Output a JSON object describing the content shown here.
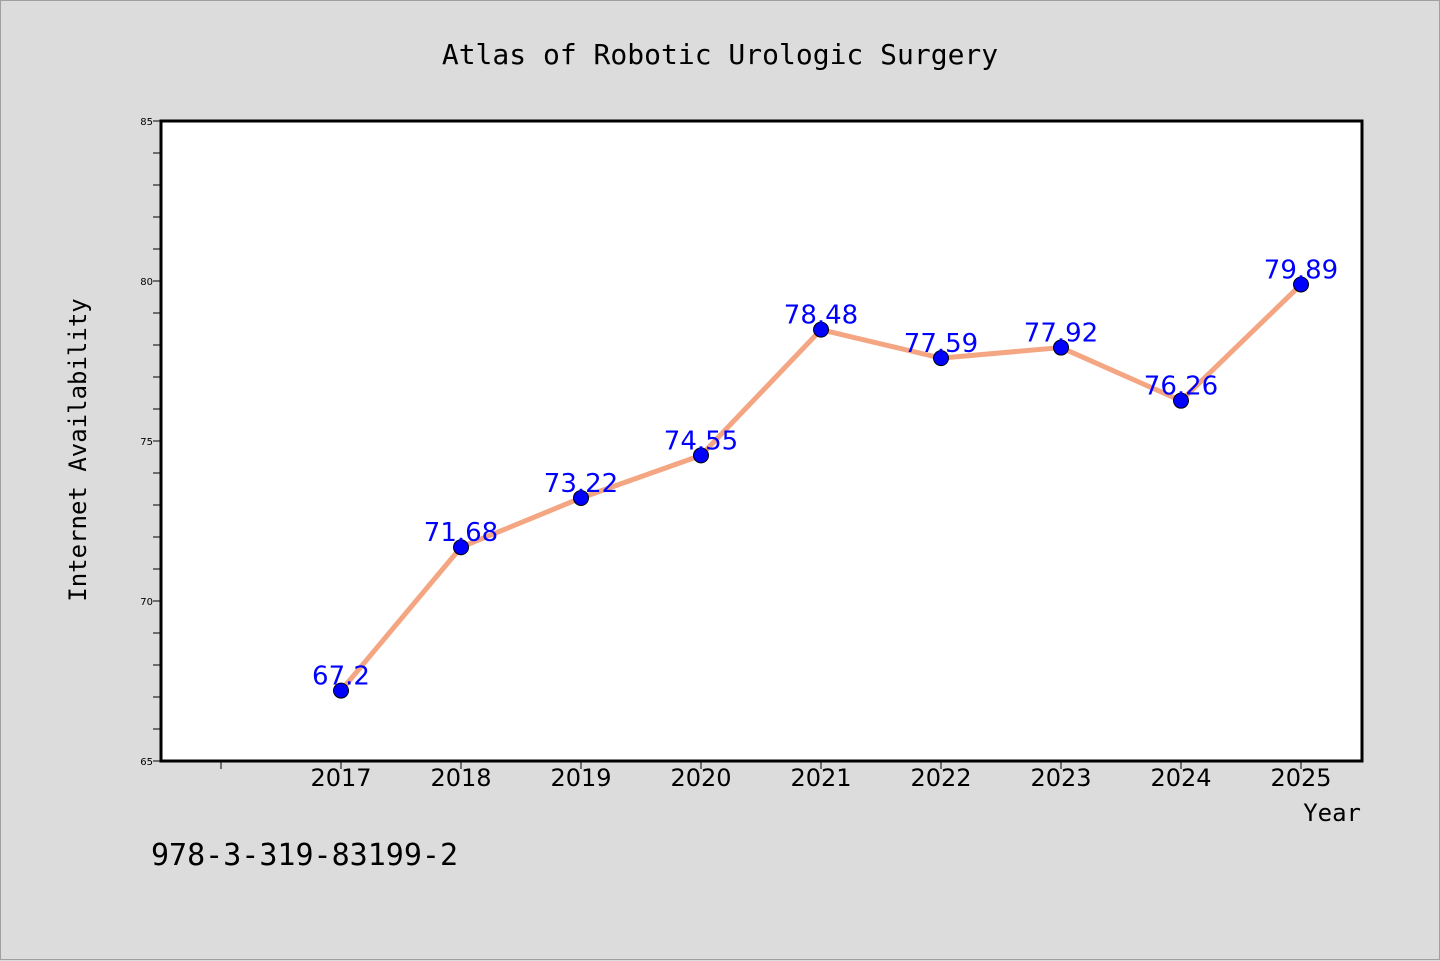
{
  "chart_data": {
    "type": "line",
    "title": "Atlas of Robotic Urologic Surgery",
    "xlabel": "Year",
    "ylabel": "Internet Availability",
    "x": [
      "2017",
      "2018",
      "2019",
      "2020",
      "2021",
      "2022",
      "2023",
      "2024",
      "2025"
    ],
    "series": [
      {
        "values": [
          67.2,
          71.68,
          73.22,
          74.55,
          78.48,
          77.59,
          77.92,
          76.26,
          79.89
        ]
      }
    ],
    "data_labels": [
      "67.2",
      "71.68",
      "73.22",
      "74.55",
      "78.48",
      "77.59",
      "77.92",
      "76.26",
      "79.89"
    ],
    "ylim": [
      65,
      85
    ],
    "yticks": [
      65,
      70,
      75,
      80,
      85
    ],
    "grid": false,
    "colors": {
      "line": "#f4a582",
      "marker": "#0000ff",
      "label": "#0000ff",
      "plot_bg": "#ffffff",
      "page_bg": "#dcdcdc"
    }
  },
  "footnote": "978-3-319-83199-2"
}
